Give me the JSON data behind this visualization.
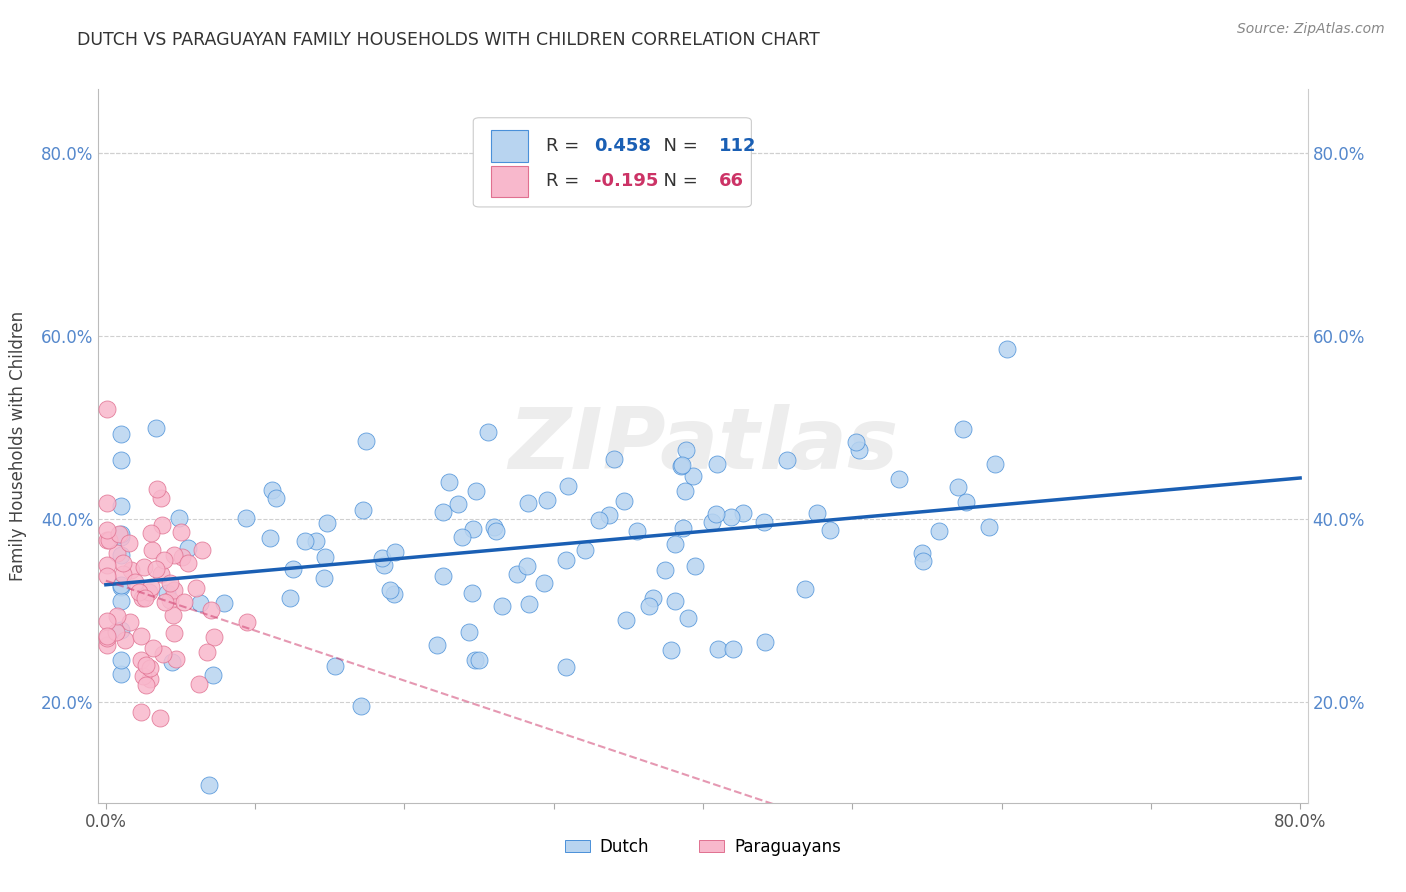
{
  "title": "DUTCH VS PARAGUAYAN FAMILY HOUSEHOLDS WITH CHILDREN CORRELATION CHART",
  "source": "Source: ZipAtlas.com",
  "ylabel": "Family Households with Children",
  "xlim": [
    -0.005,
    0.805
  ],
  "ylim": [
    0.09,
    0.87
  ],
  "yticks": [
    0.2,
    0.4,
    0.6,
    0.8
  ],
  "ytick_labels": [
    "20.0%",
    "40.0%",
    "60.0%",
    "80.0%"
  ],
  "xticks": [
    0.0,
    0.1,
    0.2,
    0.3,
    0.4,
    0.5,
    0.6,
    0.7,
    0.8
  ],
  "xtick_labels": [
    "0.0%",
    "",
    "",
    "",
    "",
    "",
    "",
    "",
    "80.0%"
  ],
  "dutch_R": 0.458,
  "dutch_N": 112,
  "paraguayan_R": -0.195,
  "paraguayan_N": 66,
  "dutch_color": "#b8d4f0",
  "dutch_edge_color": "#4a90d9",
  "dutch_line_color": "#1a5fb4",
  "paraguayan_color": "#f8b8cc",
  "paraguayan_edge_color": "#e07090",
  "paraguayan_line_color": "#cc3366",
  "watermark": "ZIPatlas",
  "grid_color": "#d0d0d0",
  "title_color": "#333333",
  "source_color": "#888888",
  "tick_color": "#5588cc"
}
